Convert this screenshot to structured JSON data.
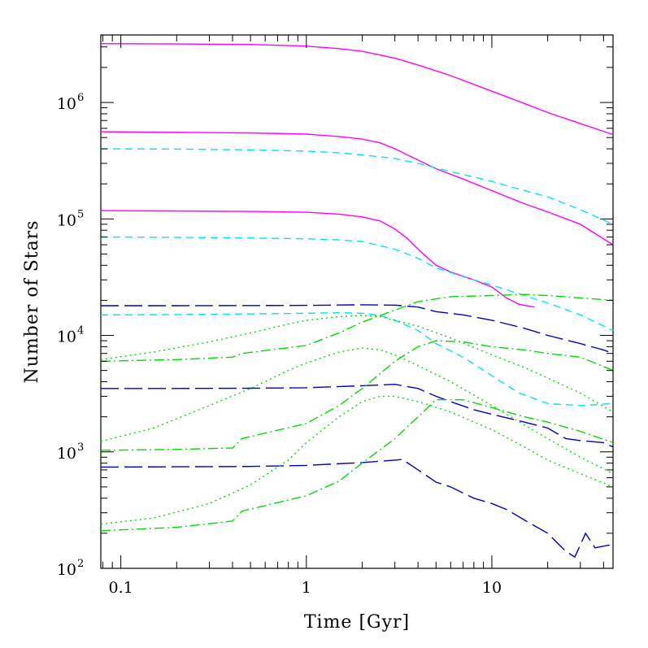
{
  "chart_data": {
    "type": "line",
    "xlabel": "Time [Gyr]",
    "ylabel": "Number of Stars",
    "xscale": "log",
    "yscale": "log",
    "xlim": [
      0.078,
      45
    ],
    "ylim": [
      100,
      3800000
    ],
    "grid": false,
    "legend": "none",
    "x_ticks": [
      {
        "value": 0.1,
        "label": "0.1"
      },
      {
        "value": 1,
        "label": "1"
      },
      {
        "value": 10,
        "label": "10"
      }
    ],
    "y_ticks": [
      {
        "value": 100,
        "base": "10",
        "exp": "2"
      },
      {
        "value": 1000,
        "base": "10",
        "exp": "3"
      },
      {
        "value": 10000,
        "base": "10",
        "exp": "4"
      },
      {
        "value": 100000,
        "base": "10",
        "exp": "5"
      },
      {
        "value": 1000000,
        "base": "10",
        "exp": "6"
      }
    ],
    "colors": {
      "total": "#ff00ff",
      "cyan": "#00e5ee",
      "blue": "#0000cc",
      "green": "#00dd00"
    },
    "series": [
      {
        "color": "#ff00ff",
        "style": "solid",
        "points": [
          [
            0.078,
            3200000
          ],
          [
            0.2,
            3180000
          ],
          [
            0.5,
            3150000
          ],
          [
            1,
            3050000
          ],
          [
            1.5,
            2900000
          ],
          [
            2,
            2750000
          ],
          [
            3,
            2400000
          ],
          [
            4,
            2100000
          ],
          [
            6,
            1700000
          ],
          [
            10,
            1250000
          ],
          [
            15,
            980000
          ],
          [
            20,
            820000
          ],
          [
            30,
            660000
          ],
          [
            45,
            530000
          ]
        ]
      },
      {
        "color": "#ff00ff",
        "style": "solid",
        "points": [
          [
            0.078,
            560000
          ],
          [
            0.2,
            555000
          ],
          [
            0.5,
            548000
          ],
          [
            1,
            535000
          ],
          [
            1.5,
            510000
          ],
          [
            2,
            485000
          ],
          [
            2.5,
            450000
          ],
          [
            3,
            400000
          ],
          [
            4,
            320000
          ],
          [
            5,
            270000
          ],
          [
            7,
            220000
          ],
          [
            10,
            175000
          ],
          [
            15,
            135000
          ],
          [
            20,
            115000
          ],
          [
            30,
            90000
          ],
          [
            45,
            60000
          ]
        ]
      },
      {
        "color": "#ff00ff",
        "style": "solid",
        "points": [
          [
            0.078,
            118000
          ],
          [
            0.2,
            117000
          ],
          [
            0.5,
            116000
          ],
          [
            1,
            114000
          ],
          [
            1.5,
            110000
          ],
          [
            2,
            104000
          ],
          [
            2.5,
            96000
          ],
          [
            3,
            82000
          ],
          [
            3.5,
            68000
          ],
          [
            4,
            55000
          ],
          [
            5,
            40000
          ],
          [
            6,
            35000
          ],
          [
            8,
            30000
          ],
          [
            10,
            26000
          ],
          [
            12,
            21000
          ],
          [
            14,
            18500
          ],
          [
            17,
            17500
          ]
        ]
      },
      {
        "color": "#00e5ee",
        "style": "dashed",
        "points": [
          [
            0.078,
            400000
          ],
          [
            0.2,
            398000
          ],
          [
            0.5,
            392000
          ],
          [
            1,
            382000
          ],
          [
            1.5,
            370000
          ],
          [
            2,
            355000
          ],
          [
            3,
            330000
          ],
          [
            4,
            300000
          ],
          [
            6,
            255000
          ],
          [
            10,
            210000
          ],
          [
            15,
            175000
          ],
          [
            20,
            155000
          ],
          [
            30,
            120000
          ],
          [
            45,
            90000
          ]
        ]
      },
      {
        "color": "#00e5ee",
        "style": "dashed",
        "points": [
          [
            0.078,
            70000
          ],
          [
            0.2,
            69500
          ],
          [
            0.5,
            68500
          ],
          [
            1,
            67500
          ],
          [
            1.5,
            66000
          ],
          [
            2,
            64000
          ],
          [
            3,
            55000
          ],
          [
            4,
            46000
          ],
          [
            5,
            38000
          ],
          [
            7,
            32000
          ],
          [
            10,
            27000
          ],
          [
            15,
            22000
          ],
          [
            20,
            19000
          ],
          [
            30,
            15000
          ],
          [
            45,
            11000
          ]
        ]
      },
      {
        "color": "#00e5ee",
        "style": "dashed",
        "points": [
          [
            0.078,
            15000
          ],
          [
            0.2,
            15100
          ],
          [
            0.5,
            15300
          ],
          [
            1,
            15500
          ],
          [
            1.5,
            15700
          ],
          [
            2,
            15500
          ],
          [
            2.5,
            14800
          ],
          [
            3,
            13500
          ],
          [
            4,
            11000
          ],
          [
            5,
            8500
          ],
          [
            7,
            6500
          ],
          [
            10,
            4500
          ],
          [
            14,
            3200
          ],
          [
            20,
            2600
          ],
          [
            30,
            2500
          ],
          [
            45,
            2600
          ]
        ]
      },
      {
        "color": "#0000cc",
        "style": "longdash",
        "points": [
          [
            0.078,
            18000
          ],
          [
            0.2,
            18000
          ],
          [
            0.5,
            18050
          ],
          [
            1,
            18100
          ],
          [
            2,
            18300
          ],
          [
            3,
            18200
          ],
          [
            4,
            17500
          ],
          [
            5,
            16000
          ],
          [
            7,
            15000
          ],
          [
            10,
            13500
          ],
          [
            15,
            11500
          ],
          [
            20,
            10000
          ],
          [
            30,
            8500
          ],
          [
            40,
            7500
          ],
          [
            45,
            7000
          ]
        ]
      },
      {
        "color": "#0000cc",
        "style": "longdash",
        "points": [
          [
            0.078,
            3500
          ],
          [
            0.2,
            3500
          ],
          [
            0.5,
            3520
          ],
          [
            1,
            3550
          ],
          [
            2,
            3700
          ],
          [
            3,
            3800
          ],
          [
            4,
            3500
          ],
          [
            5,
            3000
          ],
          [
            6,
            2700
          ],
          [
            8,
            2300
          ],
          [
            10,
            2100
          ],
          [
            15,
            1800
          ],
          [
            20,
            1600
          ],
          [
            25,
            1300
          ],
          [
            30,
            1250
          ],
          [
            40,
            1200
          ],
          [
            45,
            1100
          ]
        ]
      },
      {
        "color": "#0000cc",
        "style": "longdash",
        "points": [
          [
            0.078,
            740
          ],
          [
            0.2,
            745
          ],
          [
            0.5,
            750
          ],
          [
            1,
            765
          ],
          [
            2,
            810
          ],
          [
            3,
            850
          ],
          [
            3.3,
            860
          ],
          [
            4,
            700
          ],
          [
            5,
            550
          ],
          [
            6,
            500
          ],
          [
            8,
            400
          ],
          [
            10,
            360
          ],
          [
            12,
            320
          ],
          [
            15,
            260
          ],
          [
            20,
            200
          ],
          [
            25,
            140
          ],
          [
            28,
            125
          ],
          [
            32,
            200
          ],
          [
            36,
            150
          ],
          [
            40,
            155
          ],
          [
            45,
            160
          ]
        ]
      },
      {
        "color": "#00dd00",
        "style": "dotted",
        "points": [
          [
            0.078,
            6200
          ],
          [
            0.15,
            7200
          ],
          [
            0.3,
            8800
          ],
          [
            0.5,
            10500
          ],
          [
            0.8,
            12500
          ],
          [
            1,
            13500
          ],
          [
            1.5,
            14500
          ],
          [
            2,
            14800
          ],
          [
            2.5,
            14500
          ],
          [
            3,
            13500
          ],
          [
            4,
            12000
          ],
          [
            6,
            9500
          ],
          [
            10,
            6800
          ],
          [
            15,
            5300
          ],
          [
            20,
            4300
          ],
          [
            30,
            3200
          ],
          [
            45,
            2200
          ]
        ]
      },
      {
        "color": "#00dd00",
        "style": "dotted",
        "points": [
          [
            0.078,
            1230
          ],
          [
            0.15,
            1600
          ],
          [
            0.3,
            2500
          ],
          [
            0.5,
            3500
          ],
          [
            0.8,
            5000
          ],
          [
            1,
            5800
          ],
          [
            1.5,
            7200
          ],
          [
            2,
            7800
          ],
          [
            2.5,
            7500
          ],
          [
            3,
            6800
          ],
          [
            4,
            5500
          ],
          [
            6,
            4000
          ],
          [
            10,
            2500
          ],
          [
            15,
            1700
          ],
          [
            20,
            1300
          ],
          [
            30,
            900
          ],
          [
            45,
            650
          ]
        ]
      },
      {
        "color": "#00dd00",
        "style": "dotted",
        "points": [
          [
            0.078,
            240
          ],
          [
            0.15,
            270
          ],
          [
            0.3,
            360
          ],
          [
            0.5,
            520
          ],
          [
            0.8,
            850
          ],
          [
            1,
            1200
          ],
          [
            1.5,
            2000
          ],
          [
            2,
            2700
          ],
          [
            2.5,
            3000
          ],
          [
            3,
            3000
          ],
          [
            4,
            2700
          ],
          [
            6,
            2200
          ],
          [
            10,
            1550
          ],
          [
            15,
            1100
          ],
          [
            20,
            850
          ],
          [
            30,
            650
          ],
          [
            45,
            500
          ]
        ]
      },
      {
        "color": "#00dd00",
        "style": "dashdot",
        "points": [
          [
            0.078,
            6000
          ],
          [
            0.2,
            6200
          ],
          [
            0.4,
            6500
          ],
          [
            0.45,
            7000
          ],
          [
            1,
            8200
          ],
          [
            1.5,
            10500
          ],
          [
            2,
            13000
          ],
          [
            3,
            16500
          ],
          [
            4,
            19500
          ],
          [
            6,
            21500
          ],
          [
            10,
            22000
          ],
          [
            15,
            22500
          ],
          [
            20,
            22000
          ],
          [
            30,
            21000
          ],
          [
            45,
            20000
          ]
        ]
      },
      {
        "color": "#00dd00",
        "style": "dashdot",
        "points": [
          [
            0.078,
            1030
          ],
          [
            0.2,
            1050
          ],
          [
            0.4,
            1080
          ],
          [
            0.45,
            1300
          ],
          [
            1,
            1750
          ],
          [
            1.5,
            2500
          ],
          [
            2,
            3500
          ],
          [
            3,
            6000
          ],
          [
            4,
            8000
          ],
          [
            5,
            9000
          ],
          [
            7,
            8800
          ],
          [
            10,
            8000
          ],
          [
            15,
            7500
          ],
          [
            20,
            7000
          ],
          [
            30,
            6500
          ],
          [
            45,
            5000
          ]
        ]
      },
      {
        "color": "#00dd00",
        "style": "dashdot",
        "points": [
          [
            0.078,
            210
          ],
          [
            0.2,
            225
          ],
          [
            0.4,
            255
          ],
          [
            0.45,
            310
          ],
          [
            1,
            420
          ],
          [
            1.5,
            560
          ],
          [
            2,
            800
          ],
          [
            3,
            1300
          ],
          [
            4,
            2000
          ],
          [
            5,
            2800
          ],
          [
            7,
            2800
          ],
          [
            10,
            2400
          ],
          [
            15,
            2000
          ],
          [
            20,
            1800
          ],
          [
            30,
            1500
          ],
          [
            45,
            1200
          ]
        ]
      }
    ]
  }
}
